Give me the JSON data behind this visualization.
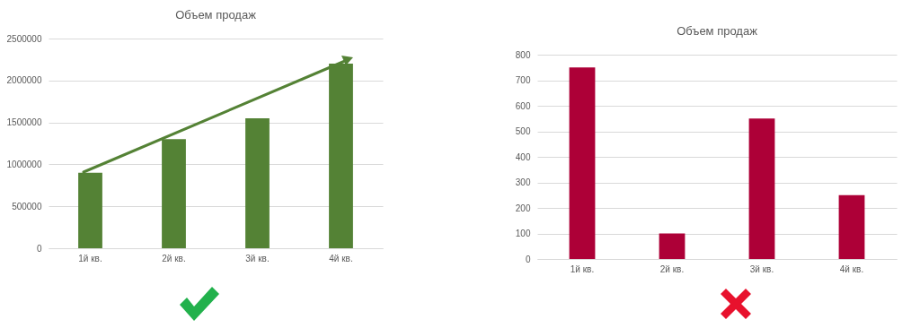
{
  "chart_data": [
    {
      "type": "bar",
      "title": "Объем продаж",
      "categories": [
        "1й кв.",
        "2й кв.",
        "3й кв.",
        "4й кв."
      ],
      "values": [
        900000,
        1300000,
        1550000,
        2200000
      ],
      "color": "#548235",
      "ylim": [
        0,
        2500000
      ],
      "yticks": [
        0,
        500000,
        1000000,
        1500000,
        2000000,
        2500000
      ],
      "grid": "y"
    },
    {
      "type": "bar",
      "title": "Объем продаж",
      "categories": [
        "1й кв.",
        "2й кв.",
        "3й кв.",
        "4й кв."
      ],
      "values": [
        750,
        100,
        550,
        250
      ],
      "color": "#ad0037",
      "ylim": [
        0,
        800
      ],
      "yticks": [
        0,
        100,
        200,
        300,
        400,
        500,
        600,
        700,
        800
      ],
      "grid": "y"
    }
  ]
}
